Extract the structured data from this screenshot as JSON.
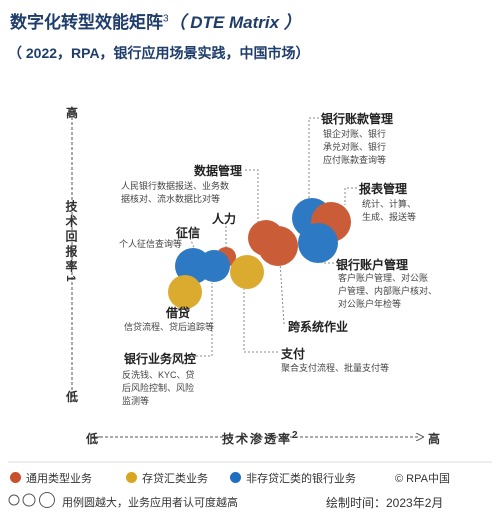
{
  "header": {
    "title": "数字化转型效能矩阵",
    "title_sup": "3",
    "title_en": "（ DTE Matrix ）",
    "subtitle": "（ 2022，RPA，银行应用场景实践，中国市场）"
  },
  "axes": {
    "y_high": "高",
    "y_label": "技术回报率",
    "y_sup": "1",
    "y_low": "低",
    "x_low": "低",
    "x_label": "技术渗透率",
    "x_sup": "2",
    "x_high": "高"
  },
  "nodes": [
    {
      "label": "银行账款管理",
      "desc": [
        "银企对账、银行",
        "承兑对账、银行",
        "应付账款查询等"
      ]
    },
    {
      "label": "报表管理",
      "desc": [
        "统计、计算、",
        "生成、报送等"
      ]
    },
    {
      "label": "数据管理",
      "desc": [
        "人民银行数据报送、业务数",
        "据核对、流水数据比对等"
      ]
    },
    {
      "label": "人力",
      "desc": []
    },
    {
      "label": "征信",
      "desc": [
        "个人征信查询等"
      ]
    },
    {
      "label": "银行账户管理",
      "desc": [
        "客户账户管理、对公账",
        "户管理、内部账户核对、",
        "对公账户年检等"
      ]
    },
    {
      "label": "借贷",
      "desc": [
        "信贷流程、贷后追踪等"
      ]
    },
    {
      "label": "跨系统作业",
      "desc": []
    },
    {
      "label": "银行业务风控",
      "desc": [
        "反洗钱、KYC、贷",
        "后风险控制、风险",
        "监测等"
      ]
    },
    {
      "label": "支付",
      "desc": [
        "聚合支付流程、批量支付等"
      ]
    }
  ],
  "legend": [
    "通用类型业务",
    "存贷汇类业务",
    "非存贷汇类的银行业务"
  ],
  "footer": {
    "source": "© RPA中国",
    "note": "用例圆越大，业务应用者认可度越高",
    "date": "绘制时间：2023年2月"
  }
}
